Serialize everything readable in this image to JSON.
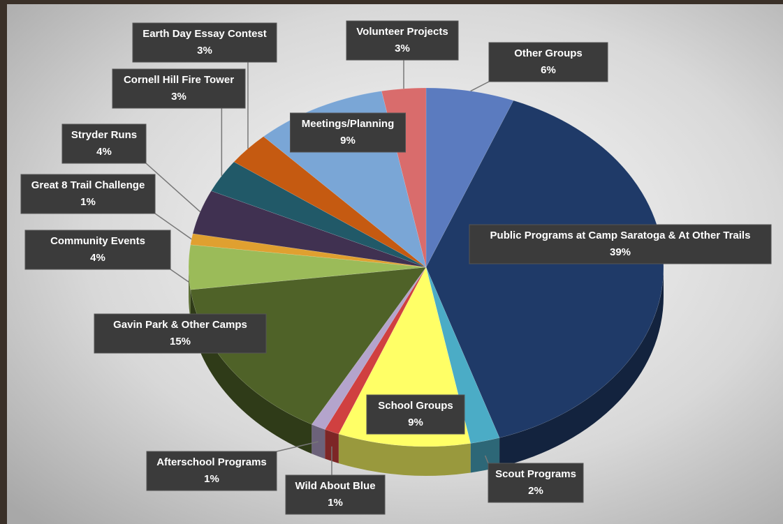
{
  "chart_data": {
    "type": "pie",
    "categories": [
      "Other Groups",
      "Public Programs at Camp Saratoga & At Other Trails",
      "Scout Programs",
      "School Groups",
      "Wild About Blue",
      "Afterschool Programs",
      "Gavin Park & Other Camps",
      "Community Events",
      "Great 8 Trail Challenge",
      "Stryder Runs",
      "Cornell Hill Fire Tower",
      "Earth Day Essay Contest",
      "Meetings/Planning",
      "Volunteer Projects"
    ],
    "values": [
      6,
      39,
      2,
      9,
      1,
      1,
      15,
      4,
      1,
      4,
      3,
      3,
      9,
      3
    ],
    "value_labels": [
      "6%",
      "39%",
      "2%",
      "9%",
      "1%",
      "1%",
      "15%",
      "4%",
      "1%",
      "4%",
      "3%",
      "3%",
      "9%",
      "3%"
    ],
    "colors": [
      "#5b7bbf",
      "#1f3a68",
      "#4bacc6",
      "#ffff66",
      "#d04040",
      "#b4a4cc",
      "#4f6228",
      "#9bbb59",
      "#e0a030",
      "#403151",
      "#215968",
      "#c55a11",
      "#7aa6d6",
      "#d96c6c"
    ]
  }
}
